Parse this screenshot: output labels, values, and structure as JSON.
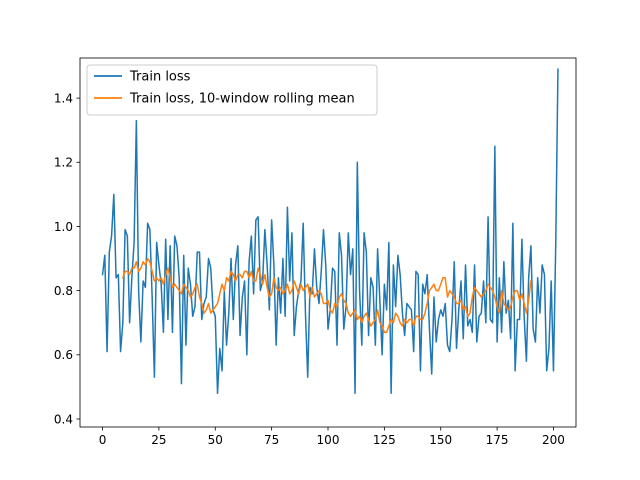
{
  "chart_data": {
    "type": "line",
    "title": "",
    "xlabel": "",
    "ylabel": "",
    "xlim": [
      -10,
      210
    ],
    "ylim": [
      0.375,
      1.525
    ],
    "xticks": [
      0,
      25,
      50,
      75,
      100,
      125,
      150,
      175,
      200
    ],
    "yticks": [
      0.4,
      0.6,
      0.8,
      1.0,
      1.2,
      1.4
    ],
    "ytick_labels": [
      "0.4",
      "0.6",
      "0.8",
      "1.0",
      "1.2",
      "1.4"
    ],
    "grid": false,
    "legend_position": "top-left",
    "series": [
      {
        "name": "Train loss",
        "color": "#1f77b4",
        "x_start": 0,
        "values": [
          0.85,
          0.91,
          0.61,
          0.92,
          0.97,
          1.1,
          0.84,
          0.85,
          0.61,
          0.7,
          0.99,
          0.97,
          0.7,
          0.84,
          0.95,
          1.33,
          0.8,
          0.64,
          0.83,
          0.81,
          1.01,
          0.99,
          0.78,
          0.53,
          0.95,
          0.88,
          0.82,
          0.67,
          0.96,
          0.71,
          0.94,
          0.67,
          0.97,
          0.94,
          0.84,
          0.51,
          0.91,
          0.63,
          0.87,
          0.82,
          0.72,
          0.75,
          0.92,
          0.92,
          0.71,
          0.76,
          0.78,
          0.9,
          0.87,
          0.74,
          0.72,
          0.48,
          0.62,
          0.55,
          0.8,
          0.63,
          0.73,
          0.9,
          0.71,
          0.88,
          0.94,
          0.66,
          0.78,
          0.83,
          0.6,
          0.89,
          0.97,
          0.79,
          1.02,
          1.03,
          0.8,
          0.83,
          0.99,
          0.88,
          0.74,
          1.02,
          0.88,
          0.63,
          0.84,
          0.73,
          0.9,
          0.72,
          1.06,
          0.83,
          0.98,
          0.66,
          0.75,
          0.8,
          0.83,
          1.01,
          0.73,
          0.53,
          0.81,
          0.79,
          0.93,
          0.81,
          0.76,
          0.86,
          0.99,
          0.88,
          0.68,
          0.74,
          0.87,
          0.86,
          0.63,
          0.98,
          0.91,
          0.68,
          0.75,
          0.98,
          0.85,
          0.93,
          0.48,
          1.2,
          0.8,
          0.63,
          0.98,
          0.92,
          0.66,
          0.84,
          0.81,
          0.63,
          0.93,
          0.77,
          0.6,
          0.82,
          0.74,
          0.95,
          0.48,
          0.88,
          0.75,
          0.91,
          0.85,
          0.73,
          0.66,
          0.76,
          0.75,
          0.74,
          0.61,
          0.86,
          0.85,
          0.55,
          0.82,
          0.79,
          0.85,
          0.68,
          0.54,
          0.78,
          0.64,
          0.71,
          0.74,
          0.72,
          0.76,
          0.63,
          0.61,
          0.71,
          0.89,
          0.62,
          0.74,
          0.83,
          0.65,
          0.88,
          0.69,
          0.71,
          0.67,
          0.88,
          0.64,
          0.72,
          0.73,
          0.83,
          0.7,
          1.03,
          0.71,
          0.7,
          1.25,
          0.64,
          0.84,
          0.67,
          0.89,
          0.73,
          0.77,
          0.65,
          1.01,
          0.55,
          0.71,
          0.71,
          0.96,
          0.72,
          0.58,
          0.84,
          0.94,
          0.68,
          0.64,
          0.84,
          0.73,
          0.88,
          0.85,
          0.55,
          0.62,
          0.83,
          0.55,
          0.94,
          1.49
        ]
      },
      {
        "name": "Train loss, 10-window rolling mean",
        "color": "#ff7f0e",
        "x_start": 9,
        "values": [
          0.84,
          0.86,
          0.86,
          0.85,
          0.87,
          0.87,
          0.89,
          0.86,
          0.87,
          0.89,
          0.88,
          0.9,
          0.89,
          0.86,
          0.83,
          0.84,
          0.83,
          0.84,
          0.82,
          0.85,
          0.87,
          0.84,
          0.81,
          0.82,
          0.81,
          0.8,
          0.79,
          0.82,
          0.81,
          0.8,
          0.78,
          0.79,
          0.81,
          0.82,
          0.78,
          0.76,
          0.73,
          0.74,
          0.76,
          0.73,
          0.74,
          0.75,
          0.76,
          0.79,
          0.82,
          0.8,
          0.84,
          0.83,
          0.86,
          0.85,
          0.83,
          0.85,
          0.85,
          0.84,
          0.86,
          0.86,
          0.84,
          0.86,
          0.83,
          0.83,
          0.87,
          0.85,
          0.82,
          0.85,
          0.81,
          0.78,
          0.79,
          0.84,
          0.81,
          0.8,
          0.81,
          0.79,
          0.8,
          0.82,
          0.79,
          0.8,
          0.83,
          0.81,
          0.79,
          0.82,
          0.8,
          0.81,
          0.82,
          0.78,
          0.81,
          0.78,
          0.79,
          0.8,
          0.79,
          0.76,
          0.76,
          0.77,
          0.74,
          0.73,
          0.76,
          0.75,
          0.78,
          0.79,
          0.77,
          0.76,
          0.73,
          0.72,
          0.73,
          0.74,
          0.71,
          0.72,
          0.7,
          0.72,
          0.73,
          0.71,
          0.69,
          0.7,
          0.71,
          0.74,
          0.7,
          0.69,
          0.67,
          0.67,
          0.69,
          0.71,
          0.7,
          0.73,
          0.72,
          0.7,
          0.69,
          0.71,
          0.7,
          0.71,
          0.71,
          0.69,
          0.72,
          0.72,
          0.71,
          0.71,
          0.73,
          0.76,
          0.8,
          0.81,
          0.82,
          0.8,
          0.8,
          0.82,
          0.84,
          0.84,
          0.78,
          0.8,
          0.79,
          0.78,
          0.76,
          0.76,
          0.77,
          0.74,
          0.75,
          0.72,
          0.73,
          0.78,
          0.81,
          0.8,
          0.79,
          0.78,
          0.79,
          0.8,
          0.82,
          0.81,
          0.8,
          0.78,
          0.75,
          0.73,
          0.8,
          0.76,
          0.75,
          0.74,
          0.75,
          0.78,
          0.8,
          0.8,
          0.77,
          0.79,
          0.76,
          0.73,
          0.77,
          0.83
        ]
      }
    ]
  }
}
